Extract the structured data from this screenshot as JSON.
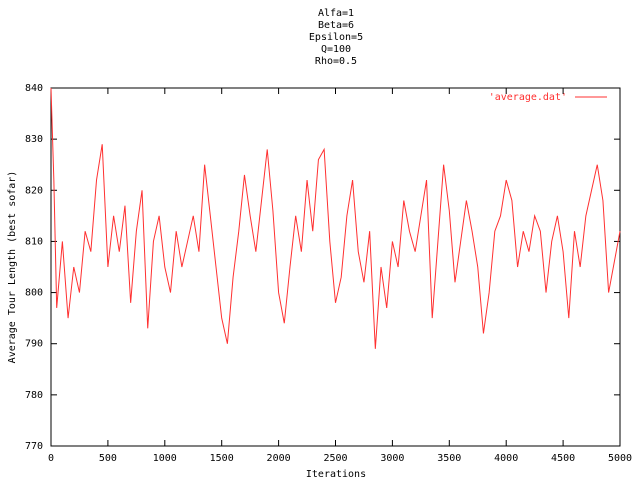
{
  "chart_data": {
    "type": "line",
    "title": [
      "Alfa=1",
      "Beta=6",
      "Epsilon=5",
      "Q=100",
      "Rho=0.5"
    ],
    "x_label": "Iterations",
    "y_label": "Average Tour Length (best sofar)",
    "xlim": [
      0,
      5000
    ],
    "ylim": [
      770,
      840
    ],
    "xticks": [
      0,
      500,
      1000,
      1500,
      2000,
      2500,
      3000,
      3500,
      4000,
      4500,
      5000
    ],
    "yticks": [
      770,
      780,
      790,
      800,
      810,
      820,
      830,
      840
    ],
    "legend": "top-right",
    "x": [
      0,
      25,
      50,
      100,
      150,
      200,
      250,
      300,
      350,
      400,
      450,
      500,
      550,
      600,
      650,
      700,
      750,
      800,
      850,
      900,
      950,
      1000,
      1050,
      1100,
      1150,
      1200,
      1250,
      1300,
      1350,
      1400,
      1450,
      1500,
      1550,
      1600,
      1650,
      1700,
      1750,
      1800,
      1850,
      1900,
      1950,
      2000,
      2050,
      2100,
      2150,
      2200,
      2250,
      2300,
      2350,
      2400,
      2450,
      2500,
      2550,
      2600,
      2650,
      2700,
      2750,
      2800,
      2850,
      2900,
      2950,
      3000,
      3050,
      3100,
      3150,
      3200,
      3250,
      3300,
      3350,
      3400,
      3450,
      3500,
      3550,
      3600,
      3650,
      3700,
      3750,
      3800,
      3850,
      3900,
      3950,
      4000,
      4050,
      4100,
      4150,
      4200,
      4250,
      4300,
      4350,
      4400,
      4450,
      4500,
      4550,
      4600,
      4650,
      4700,
      4750,
      4800,
      4850,
      4900,
      4950,
      5000
    ],
    "series": [
      {
        "name": "'average.dat'",
        "color": "#ff3030",
        "values": [
          840,
          822,
          797,
          810,
          795,
          805,
          800,
          812,
          808,
          822,
          829,
          805,
          815,
          808,
          817,
          798,
          812,
          820,
          793,
          810,
          815,
          805,
          800,
          812,
          805,
          810,
          815,
          808,
          825,
          815,
          805,
          795,
          790,
          803,
          812,
          823,
          815,
          808,
          818,
          828,
          816,
          800,
          794,
          805,
          815,
          808,
          822,
          812,
          826,
          828,
          810,
          798,
          803,
          815,
          822,
          808,
          802,
          812,
          789,
          805,
          797,
          810,
          805,
          818,
          812,
          808,
          815,
          822,
          795,
          810,
          825,
          816,
          802,
          810,
          818,
          812,
          805,
          792,
          800,
          812,
          815,
          822,
          818,
          805,
          812,
          808,
          815,
          812,
          800,
          810,
          815,
          808,
          795,
          812,
          805,
          815,
          820,
          825,
          818,
          800,
          806,
          812
        ]
      }
    ]
  }
}
